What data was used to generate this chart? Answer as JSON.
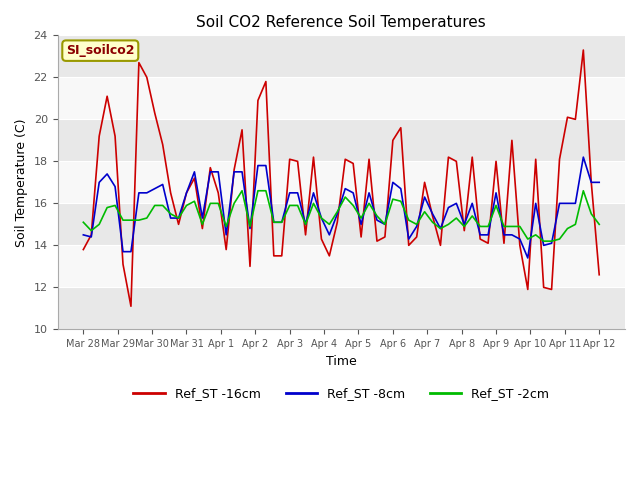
{
  "title": "Soil CO2 Reference Soil Temperatures",
  "xlabel": "Time",
  "ylabel": "Soil Temperature (C)",
  "ylim": [
    10,
    24
  ],
  "yticks": [
    10,
    12,
    14,
    16,
    18,
    20,
    22,
    24
  ],
  "legend_label": "SI_soilco2",
  "series": {
    "Ref_ST -16cm": {
      "color": "#cc0000",
      "linewidth": 1.2
    },
    "Ref_ST -8cm": {
      "color": "#0000cc",
      "linewidth": 1.2
    },
    "Ref_ST -2cm": {
      "color": "#00bb00",
      "linewidth": 1.2
    }
  },
  "xtick_labels": [
    "Mar 28",
    "Mar 29",
    "Mar 30",
    "Mar 31",
    "Apr 1",
    "Apr 2",
    "Apr 3",
    "Apr 4",
    "Apr 5",
    "Apr 6",
    "Apr 7",
    "Apr 8",
    "Apr 9",
    "Apr 10",
    "Apr 11",
    "Apr 12"
  ],
  "ref_st_16cm": [
    13.8,
    14.5,
    19.2,
    21.1,
    19.2,
    13.1,
    11.1,
    22.7,
    22.0,
    20.3,
    18.8,
    16.5,
    15.0,
    16.5,
    17.2,
    14.8,
    17.7,
    16.5,
    13.8,
    17.6,
    19.5,
    13.0,
    20.9,
    21.8,
    13.5,
    13.5,
    18.1,
    18.0,
    14.5,
    18.2,
    14.3,
    13.5,
    15.1,
    18.1,
    17.9,
    14.4,
    18.1,
    14.2,
    14.4,
    19.0,
    19.6,
    14.0,
    14.4,
    17.0,
    15.4,
    14.0,
    18.2,
    18.0,
    14.7,
    18.2,
    14.3,
    14.1,
    18.0,
    14.1,
    19.0,
    14.0,
    11.9,
    18.1,
    12.0,
    11.9,
    18.1,
    20.1,
    20.0,
    23.3,
    17.0,
    12.6
  ],
  "ref_st_8cm": [
    14.5,
    14.4,
    17.0,
    17.4,
    16.8,
    13.7,
    13.7,
    16.5,
    16.5,
    16.7,
    16.9,
    15.3,
    15.3,
    16.5,
    17.5,
    15.3,
    17.5,
    17.5,
    14.5,
    17.5,
    17.5,
    14.8,
    17.8,
    17.8,
    15.1,
    15.1,
    16.5,
    16.5,
    15.0,
    16.5,
    15.3,
    14.5,
    15.5,
    16.7,
    16.5,
    15.0,
    16.5,
    15.2,
    15.0,
    17.0,
    16.7,
    14.3,
    14.9,
    16.3,
    15.5,
    14.8,
    15.8,
    16.0,
    15.0,
    16.0,
    14.5,
    14.5,
    16.5,
    14.5,
    14.5,
    14.3,
    13.4,
    16.0,
    14.0,
    14.1,
    16.0,
    16.0,
    16.0,
    18.2,
    17.0,
    17.0
  ],
  "ref_st_2cm": [
    15.1,
    14.7,
    15.0,
    15.8,
    15.9,
    15.2,
    15.2,
    15.2,
    15.3,
    15.9,
    15.9,
    15.5,
    15.3,
    15.9,
    16.1,
    15.0,
    16.0,
    16.0,
    14.9,
    16.0,
    16.6,
    14.9,
    16.6,
    16.6,
    15.1,
    15.1,
    15.9,
    15.9,
    15.0,
    16.0,
    15.3,
    15.0,
    15.6,
    16.3,
    15.9,
    15.3,
    16.0,
    15.4,
    15.0,
    16.2,
    16.1,
    15.2,
    15.0,
    15.6,
    15.1,
    14.8,
    15.0,
    15.3,
    14.9,
    15.4,
    14.9,
    14.9,
    15.9,
    14.9,
    14.9,
    14.9,
    14.3,
    14.5,
    14.2,
    14.2,
    14.3,
    14.8,
    15.0,
    16.6,
    15.5,
    15.0
  ]
}
